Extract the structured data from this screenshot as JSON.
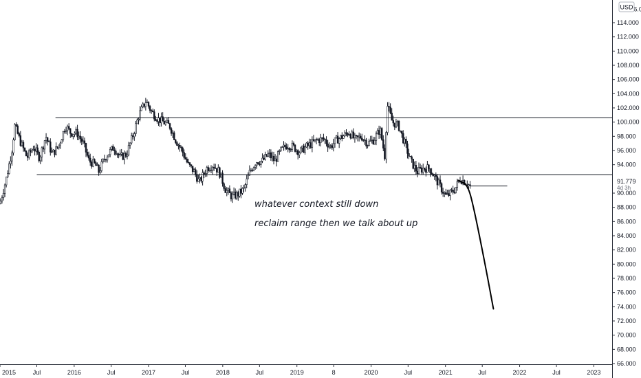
{
  "chart_data": {
    "type": "candlestick",
    "title": "",
    "currency_label": "USD",
    "y_axis_side": "right",
    "ylim": [
      65.2,
      116.2
    ],
    "xlim": [
      "2015-01-01",
      "2023-04-01"
    ],
    "grid": false,
    "y_ticks": [
      "114.000",
      "112.000",
      "110.000",
      "108.000",
      "106.000",
      "104.000",
      "102.000",
      "100.000",
      "98.000",
      "96.000",
      "94.000",
      "90.000",
      "88.000",
      "86.000",
      "84.000",
      "82.000",
      "80.000",
      "78.000",
      "76.000",
      "74.000",
      "72.000",
      "70.000",
      "68.000",
      "66.000"
    ],
    "top_tick_partial": "116.000",
    "x_ticks": [
      {
        "label": "2015",
        "date": "2015-01-01"
      },
      {
        "label": "Jul",
        "date": "2015-07-01"
      },
      {
        "label": "2016",
        "date": "2016-01-01"
      },
      {
        "label": "Jul",
        "date": "2016-07-01"
      },
      {
        "label": "2017",
        "date": "2017-01-01"
      },
      {
        "label": "Jul",
        "date": "2017-07-01"
      },
      {
        "label": "2018",
        "date": "2018-01-01"
      },
      {
        "label": "Jul",
        "date": "2018-07-01"
      },
      {
        "label": "2019",
        "date": "2019-01-01"
      },
      {
        "label": "8",
        "date": "2019-07-01"
      },
      {
        "label": "2020",
        "date": "2020-01-01"
      },
      {
        "label": "Jul",
        "date": "2020-07-01"
      },
      {
        "label": "2021",
        "date": "2021-01-01"
      },
      {
        "label": "Jul",
        "date": "2021-07-01"
      },
      {
        "label": "2022",
        "date": "2022-01-01"
      },
      {
        "label": "Jul",
        "date": "2022-07-01"
      },
      {
        "label": "2023",
        "date": "2023-01-01"
      }
    ],
    "last_price": {
      "value": 91.779,
      "label": "91.779",
      "countdown": "4d 3h"
    },
    "price_path": [
      [
        "2015-01-01",
        88.5
      ],
      [
        "2015-02-01",
        92.0
      ],
      [
        "2015-03-01",
        96.0
      ],
      [
        "2015-03-15",
        99.5
      ],
      [
        "2015-04-15",
        97.0
      ],
      [
        "2015-05-15",
        95.0
      ],
      [
        "2015-06-15",
        96.5
      ],
      [
        "2015-07-15",
        95.0
      ],
      [
        "2015-08-15",
        98.0
      ],
      [
        "2015-09-15",
        95.5
      ],
      [
        "2015-10-15",
        96.5
      ],
      [
        "2015-11-20",
        99.5
      ],
      [
        "2015-12-15",
        98.5
      ],
      [
        "2016-01-15",
        98.5
      ],
      [
        "2016-02-15",
        97.0
      ],
      [
        "2016-03-15",
        94.5
      ],
      [
        "2016-04-15",
        94.0
      ],
      [
        "2016-05-01",
        93.0
      ],
      [
        "2016-06-01",
        95.0
      ],
      [
        "2016-07-15",
        96.5
      ],
      [
        "2016-08-15",
        95.0
      ],
      [
        "2016-09-15",
        95.5
      ],
      [
        "2016-10-15",
        98.0
      ],
      [
        "2016-11-15",
        101.0
      ],
      [
        "2016-12-20",
        103.0
      ],
      [
        "2017-01-15",
        101.5
      ],
      [
        "2017-02-15",
        100.5
      ],
      [
        "2017-03-15",
        100.0
      ],
      [
        "2017-04-15",
        99.5
      ],
      [
        "2017-05-15",
        97.5
      ],
      [
        "2017-06-15",
        96.0
      ],
      [
        "2017-07-15",
        94.0
      ],
      [
        "2017-08-15",
        93.0
      ],
      [
        "2017-09-08",
        91.5
      ],
      [
        "2017-10-15",
        93.5
      ],
      [
        "2017-11-15",
        94.0
      ],
      [
        "2017-12-15",
        93.0
      ],
      [
        "2018-01-15",
        90.5
      ],
      [
        "2018-02-15",
        89.5
      ],
      [
        "2018-03-15",
        89.8
      ],
      [
        "2018-04-15",
        90.5
      ],
      [
        "2018-05-15",
        93.0
      ],
      [
        "2018-06-15",
        94.5
      ],
      [
        "2018-07-15",
        94.5
      ],
      [
        "2018-08-15",
        95.5
      ],
      [
        "2018-09-15",
        94.5
      ],
      [
        "2018-10-15",
        96.0
      ],
      [
        "2018-11-15",
        96.8
      ],
      [
        "2018-12-15",
        96.5
      ],
      [
        "2019-01-15",
        95.8
      ],
      [
        "2019-02-15",
        96.5
      ],
      [
        "2019-03-15",
        97.0
      ],
      [
        "2019-04-15",
        97.5
      ],
      [
        "2019-05-15",
        97.6
      ],
      [
        "2019-06-15",
        96.5
      ],
      [
        "2019-07-15",
        97.5
      ],
      [
        "2019-08-15",
        98.0
      ],
      [
        "2019-09-15",
        98.6
      ],
      [
        "2019-10-15",
        97.5
      ],
      [
        "2019-11-15",
        98.0
      ],
      [
        "2019-12-15",
        97.0
      ],
      [
        "2020-01-15",
        97.5
      ],
      [
        "2020-02-15",
        99.0
      ],
      [
        "2020-03-10",
        95.0
      ],
      [
        "2020-03-20",
        102.5
      ],
      [
        "2020-04-15",
        100.0
      ],
      [
        "2020-05-15",
        99.5
      ],
      [
        "2020-06-15",
        97.0
      ],
      [
        "2020-07-15",
        94.5
      ],
      [
        "2020-08-15",
        93.0
      ],
      [
        "2020-09-15",
        93.5
      ],
      [
        "2020-10-15",
        93.5
      ],
      [
        "2020-11-15",
        92.0
      ],
      [
        "2020-12-15",
        90.5
      ],
      [
        "2021-01-06",
        89.5
      ],
      [
        "2021-02-15",
        90.5
      ],
      [
        "2021-03-15",
        92.0
      ],
      [
        "2021-04-15",
        91.5
      ],
      [
        "2021-05-01",
        91.0
      ]
    ],
    "drawings": {
      "range_top": {
        "value": 100.6,
        "from": "2015-10-01",
        "to": "2023-04-01"
      },
      "range_bottom": {
        "value": 92.6,
        "from": "2015-07-01",
        "to": "2023-04-01"
      },
      "short_level": {
        "value": 91.0,
        "from": "2021-05-01",
        "to": "2021-11-01"
      },
      "projection": [
        [
          "2021-03-05",
          91.8
        ],
        [
          "2021-04-20",
          91.2
        ],
        [
          "2021-05-20",
          88.0
        ],
        [
          "2021-07-15",
          80.0
        ],
        [
          "2021-08-25",
          73.7
        ]
      ]
    },
    "annotations": [
      "whatever context still down",
      "reclaim range then we talk about up"
    ]
  }
}
